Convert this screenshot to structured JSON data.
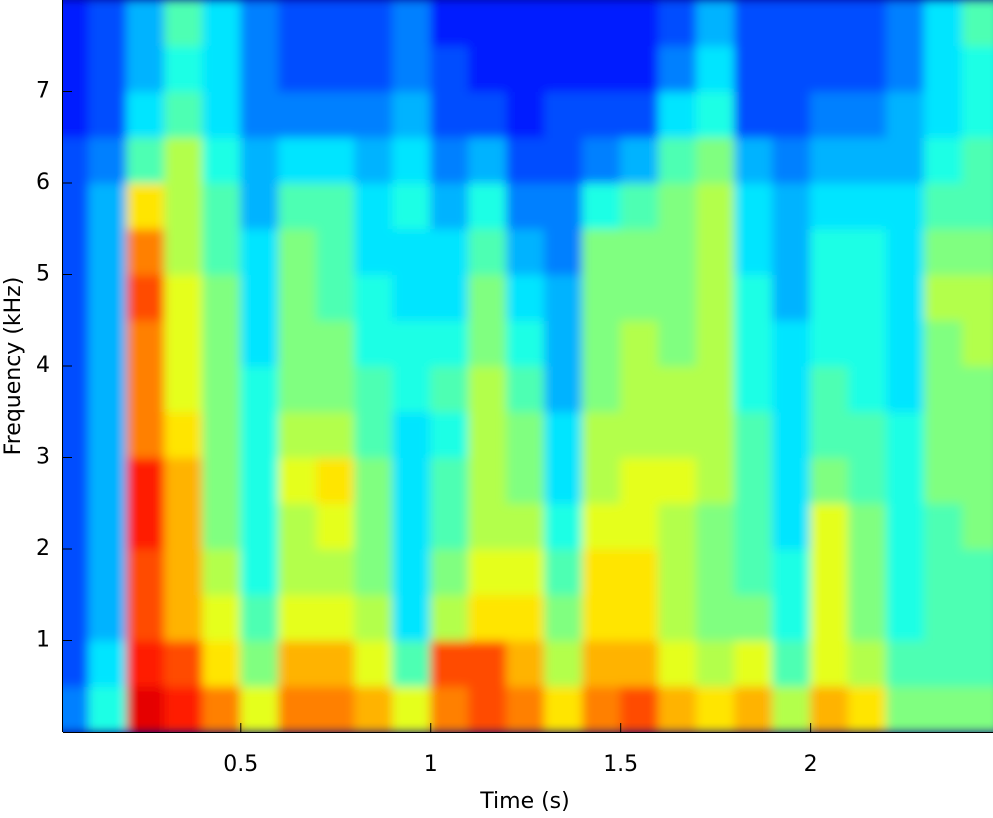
{
  "chart_data": {
    "type": "spectrogram",
    "xlabel": "Time (s)",
    "ylabel": "Frequency (kHz)",
    "colormap": "jet",
    "zlim": [
      0,
      1
    ],
    "xlim": [
      0.032,
      2.48
    ],
    "ylim": [
      0,
      8
    ],
    "xticks": [
      0.5,
      1,
      1.5,
      2
    ],
    "yticks": [
      1,
      2,
      3,
      4,
      5,
      6,
      7
    ],
    "x": [
      0.05,
      0.15,
      0.25,
      0.35,
      0.45,
      0.55,
      0.65,
      0.75,
      0.85,
      0.95,
      1.05,
      1.15,
      1.25,
      1.35,
      1.45,
      1.55,
      1.65,
      1.75,
      1.85,
      1.95,
      2.05,
      2.15,
      2.25,
      2.35,
      2.45
    ],
    "y": [
      0.25,
      0.75,
      1.25,
      1.75,
      2.25,
      2.75,
      3.25,
      3.75,
      4.25,
      4.75,
      5.25,
      5.75,
      6.25,
      6.75,
      7.25,
      7.75
    ],
    "values": [
      [
        0.25,
        0.2,
        0.2,
        0.2,
        0.2,
        0.2,
        0.2,
        0.2,
        0.2,
        0.2,
        0.2,
        0.2,
        0.2,
        0.15,
        0.15,
        0.15
      ],
      [
        0.4,
        0.35,
        0.3,
        0.3,
        0.3,
        0.3,
        0.3,
        0.3,
        0.3,
        0.3,
        0.3,
        0.3,
        0.25,
        0.2,
        0.2,
        0.2
      ],
      [
        0.9,
        0.85,
        0.8,
        0.8,
        0.85,
        0.85,
        0.75,
        0.75,
        0.75,
        0.8,
        0.75,
        0.65,
        0.45,
        0.35,
        0.3,
        0.3
      ],
      [
        0.85,
        0.8,
        0.7,
        0.7,
        0.7,
        0.7,
        0.65,
        0.6,
        0.6,
        0.6,
        0.55,
        0.55,
        0.55,
        0.45,
        0.4,
        0.45
      ],
      [
        0.75,
        0.65,
        0.6,
        0.55,
        0.5,
        0.5,
        0.5,
        0.5,
        0.5,
        0.5,
        0.45,
        0.45,
        0.4,
        0.35,
        0.35,
        0.35
      ],
      [
        0.6,
        0.5,
        0.45,
        0.4,
        0.4,
        0.4,
        0.4,
        0.4,
        0.35,
        0.35,
        0.35,
        0.3,
        0.3,
        0.25,
        0.25,
        0.25
      ],
      [
        0.75,
        0.7,
        0.6,
        0.55,
        0.55,
        0.6,
        0.55,
        0.5,
        0.5,
        0.5,
        0.5,
        0.45,
        0.35,
        0.25,
        0.2,
        0.2
      ],
      [
        0.75,
        0.7,
        0.6,
        0.55,
        0.6,
        0.65,
        0.55,
        0.5,
        0.5,
        0.45,
        0.45,
        0.45,
        0.35,
        0.25,
        0.2,
        0.2
      ],
      [
        0.7,
        0.6,
        0.55,
        0.5,
        0.5,
        0.5,
        0.45,
        0.45,
        0.4,
        0.4,
        0.35,
        0.35,
        0.3,
        0.25,
        0.2,
        0.2
      ],
      [
        0.6,
        0.45,
        0.35,
        0.35,
        0.35,
        0.35,
        0.35,
        0.4,
        0.4,
        0.35,
        0.35,
        0.4,
        0.35,
        0.3,
        0.25,
        0.25
      ],
      [
        0.75,
        0.8,
        0.55,
        0.5,
        0.45,
        0.45,
        0.4,
        0.45,
        0.4,
        0.35,
        0.35,
        0.3,
        0.25,
        0.2,
        0.2,
        0.15
      ],
      [
        0.8,
        0.8,
        0.65,
        0.6,
        0.55,
        0.55,
        0.55,
        0.55,
        0.5,
        0.5,
        0.45,
        0.4,
        0.3,
        0.2,
        0.15,
        0.15
      ],
      [
        0.75,
        0.7,
        0.65,
        0.6,
        0.55,
        0.5,
        0.5,
        0.45,
        0.4,
        0.35,
        0.3,
        0.25,
        0.2,
        0.15,
        0.15,
        0.15
      ],
      [
        0.65,
        0.55,
        0.5,
        0.45,
        0.4,
        0.35,
        0.35,
        0.3,
        0.3,
        0.3,
        0.25,
        0.25,
        0.2,
        0.2,
        0.15,
        0.15
      ],
      [
        0.75,
        0.7,
        0.65,
        0.65,
        0.6,
        0.55,
        0.55,
        0.5,
        0.5,
        0.5,
        0.5,
        0.4,
        0.25,
        0.2,
        0.15,
        0.15
      ],
      [
        0.8,
        0.7,
        0.65,
        0.65,
        0.6,
        0.6,
        0.55,
        0.55,
        0.55,
        0.5,
        0.5,
        0.45,
        0.3,
        0.2,
        0.15,
        0.15
      ],
      [
        0.7,
        0.6,
        0.55,
        0.55,
        0.55,
        0.6,
        0.55,
        0.55,
        0.5,
        0.5,
        0.5,
        0.5,
        0.45,
        0.35,
        0.25,
        0.2
      ],
      [
        0.65,
        0.55,
        0.5,
        0.5,
        0.5,
        0.55,
        0.55,
        0.55,
        0.55,
        0.55,
        0.55,
        0.55,
        0.5,
        0.4,
        0.35,
        0.3
      ],
      [
        0.7,
        0.6,
        0.5,
        0.45,
        0.45,
        0.45,
        0.45,
        0.4,
        0.4,
        0.4,
        0.35,
        0.35,
        0.3,
        0.2,
        0.2,
        0.2
      ],
      [
        0.55,
        0.45,
        0.4,
        0.4,
        0.35,
        0.35,
        0.35,
        0.35,
        0.35,
        0.3,
        0.3,
        0.3,
        0.25,
        0.2,
        0.2,
        0.2
      ],
      [
        0.7,
        0.6,
        0.6,
        0.6,
        0.6,
        0.5,
        0.45,
        0.45,
        0.4,
        0.4,
        0.4,
        0.35,
        0.3,
        0.25,
        0.2,
        0.2
      ],
      [
        0.65,
        0.55,
        0.5,
        0.5,
        0.5,
        0.45,
        0.45,
        0.4,
        0.4,
        0.4,
        0.4,
        0.35,
        0.3,
        0.25,
        0.2,
        0.2
      ],
      [
        0.5,
        0.45,
        0.4,
        0.4,
        0.4,
        0.4,
        0.4,
        0.35,
        0.35,
        0.35,
        0.35,
        0.35,
        0.3,
        0.3,
        0.25,
        0.25
      ],
      [
        0.5,
        0.45,
        0.45,
        0.45,
        0.45,
        0.5,
        0.5,
        0.5,
        0.5,
        0.55,
        0.5,
        0.45,
        0.4,
        0.35,
        0.35,
        0.35
      ],
      [
        0.5,
        0.45,
        0.45,
        0.45,
        0.5,
        0.5,
        0.5,
        0.5,
        0.55,
        0.55,
        0.5,
        0.45,
        0.45,
        0.4,
        0.4,
        0.45
      ]
    ]
  }
}
